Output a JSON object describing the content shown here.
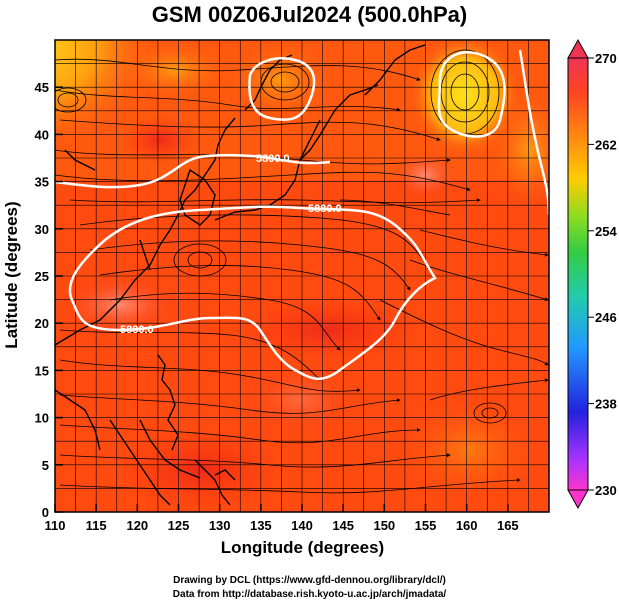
{
  "title": "GSM 00Z06Jul2024 (500.0hPa)",
  "x_axis": {
    "label": "Longitude (degrees)",
    "ticks": [
      "110",
      "115",
      "120",
      "125",
      "130",
      "135",
      "140",
      "145",
      "150",
      "155",
      "160",
      "165"
    ],
    "range": [
      110,
      170
    ]
  },
  "y_axis": {
    "label": "Latitude  (degrees)",
    "ticks": [
      "0",
      "5",
      "10",
      "15",
      "20",
      "25",
      "30",
      "35",
      "40",
      "45"
    ],
    "range": [
      0,
      50
    ]
  },
  "colorbar": {
    "ticks": [
      "230",
      "238",
      "246",
      "254",
      "262",
      "270"
    ],
    "range": [
      230,
      270
    ],
    "colors": [
      "#ff33cc",
      "#9933ff",
      "#2222dd",
      "#2299ff",
      "#22ccbb",
      "#33cc55",
      "#66dd33",
      "#ccdd11",
      "#ffbb00",
      "#ff7711",
      "#ff4422",
      "#ee3355"
    ]
  },
  "contour_labels": [
    "5800.0",
    "5880.0",
    "5880.0"
  ],
  "credits": {
    "line1": "Drawing by DCL (https://www.gfd-dennou.org/library/dcl/)",
    "line2": "Data from http://database.rish.kyoto-u.ac.jp/arch/jmadata/"
  },
  "colors": {
    "background_field": "#ff3a10",
    "warm_patch": "#ff7a60",
    "cool_patch": "#ffd21a",
    "contour": "#ffffff",
    "streamline": "#000000",
    "coast": "#000000"
  }
}
